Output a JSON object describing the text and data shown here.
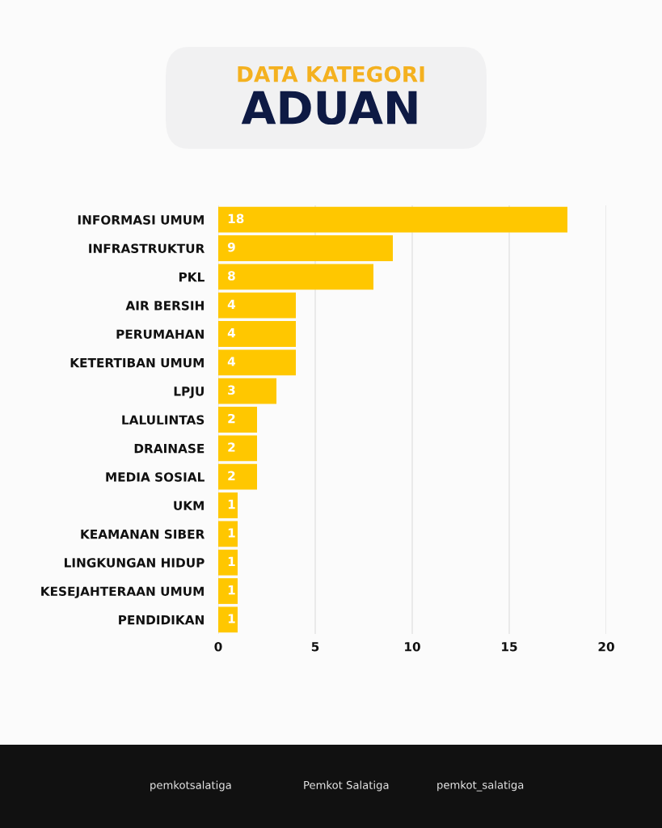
{
  "chart_data": {
    "type": "bar",
    "orientation": "horizontal",
    "title": "DATA KATEGORI",
    "subtitle": "ADUAN",
    "categories": [
      "INFORMASI UMUM",
      "INFRASTRUKTUR",
      "PKL",
      "AIR BERSIH",
      "PERUMAHAN",
      "KETERTIBAN UMUM",
      "LPJU",
      "LALULINTAS",
      "DRAINASE",
      "MEDIA SOSIAL",
      "UKM",
      "KEAMANAN SIBER",
      "LINGKUNGAN HIDUP",
      "KESEJAHTERAAN UMUM",
      "PENDIDIKAN"
    ],
    "values": [
      18,
      9,
      8,
      4,
      4,
      4,
      3,
      2,
      2,
      2,
      1,
      1,
      1,
      1,
      1
    ],
    "color": "#ffc700",
    "xlim": [
      0,
      20
    ],
    "xticks": [
      0,
      5,
      10,
      15,
      20
    ],
    "grid": "x",
    "data_labels": true,
    "annotations": [
      "pemkotsalatiga",
      "Pemkot Salatiga",
      "pemkot_salatiga"
    ]
  }
}
